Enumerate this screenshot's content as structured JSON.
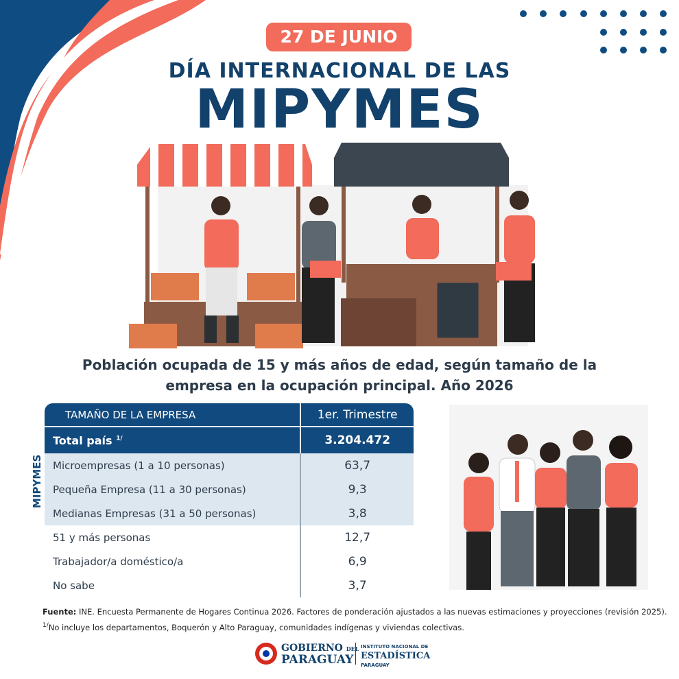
{
  "header": {
    "date": "27 DE JUNIO",
    "title_line1": "DÍA INTERNACIONAL DE LAS",
    "title_line2": "MIPYMES"
  },
  "subtitle": [
    "Población ocupada de 15 y más años de edad, según tamaño de la",
    "empresa en la ocupación principal. Año 2026"
  ],
  "table": {
    "headers": [
      "TAMAÑO DE LA EMPRESA",
      "1er. Trimestre"
    ],
    "total": {
      "label": "Total país",
      "note": "1/",
      "value": "3.204.472"
    },
    "group_label": "MIPYMES",
    "group_rows": [
      [
        "Microempresas (1 a 10 personas)",
        "63,7"
      ],
      [
        "Pequeña Empresa (11 a 30 personas)",
        "9,3"
      ],
      [
        "Medianas Empresas (31 a 50 personas)",
        "3,8"
      ]
    ],
    "rows": [
      [
        "51 y más personas",
        "12,7"
      ],
      [
        "Trabajador/a doméstico/a",
        "6,9"
      ],
      [
        "No sabe",
        "3,7"
      ]
    ]
  },
  "footnotes": {
    "source_label": "Fuente:",
    "source": "INE. Encuesta Permanente de Hogares Continua 2026. Factores de ponderación ajustados a las nuevas estimaciones y proyecciones (revisión 2025).",
    "note_mark": "1/",
    "note": "No incluye los departamentos, Boquerón y Alto Paraguay, comunidades indígenas y viviendas colectivas."
  },
  "logos": {
    "gov_line1": "GOBIERNO",
    "gov_del": "DEL",
    "gov_line2": "PARAGUAY",
    "ine_line1": "INSTITUTO NACIONAL DE",
    "ine_line2": "ESTADÍSTICA",
    "ine_line3": "PARAGUAY"
  }
}
